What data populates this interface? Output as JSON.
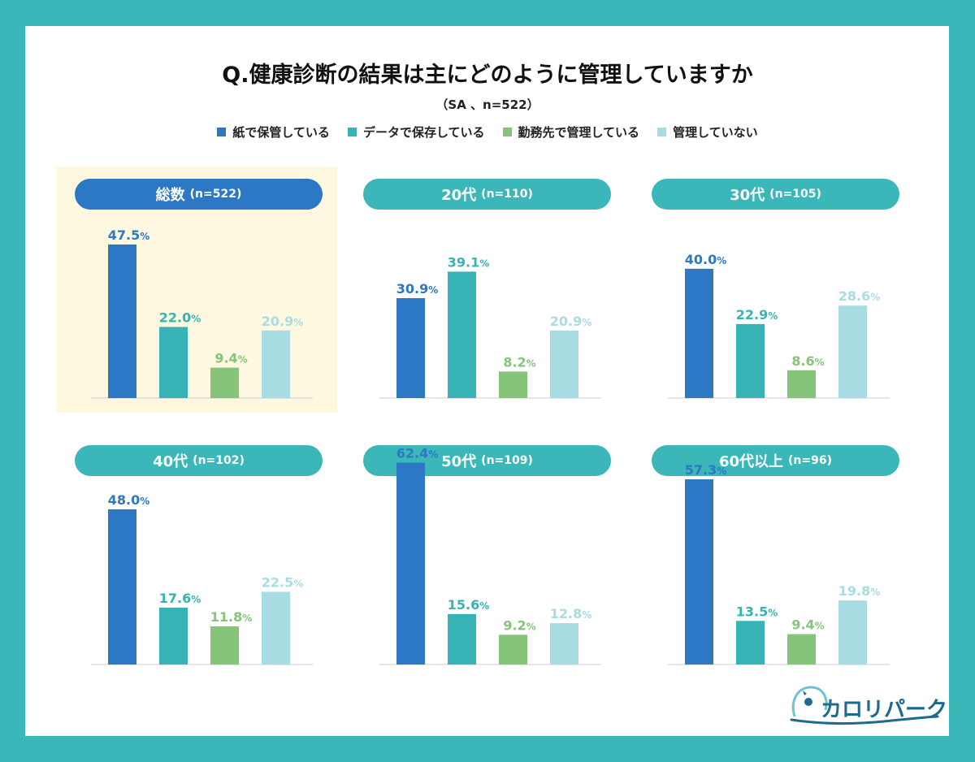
{
  "title": "Q.健康診断の結果は主にどのように管理していますか",
  "subtitle": "（SA 、n=522）",
  "colors": {
    "background": "#3cb7b9",
    "series": [
      "#2c78c4",
      "#37b3b6",
      "#86c47a",
      "#a8dce2"
    ],
    "pill_total": "#2c78c4",
    "pill_age": "#3cb7b9",
    "axis": "#cccccc"
  },
  "chart_data": {
    "type": "bar",
    "series_names": [
      "紙で保管している",
      "データで保存している",
      "勤務先で管理している",
      "管理していない"
    ],
    "value_unit": "%",
    "ylim": [
      0,
      65
    ],
    "grid": false,
    "legend": "top",
    "panels": [
      {
        "label": "総数",
        "n": "(n=522)",
        "values": [
          47.5,
          22.0,
          9.4,
          20.9
        ]
      },
      {
        "label": "20代",
        "n": "(n=110)",
        "values": [
          30.9,
          39.1,
          8.2,
          20.9
        ]
      },
      {
        "label": "30代",
        "n": "(n=105)",
        "values": [
          40.0,
          22.9,
          8.6,
          28.6
        ]
      },
      {
        "label": "40代",
        "n": "(n=102)",
        "values": [
          48.0,
          17.6,
          11.8,
          22.5
        ]
      },
      {
        "label": "50代",
        "n": "(n=109)",
        "values": [
          62.4,
          15.6,
          9.2,
          12.8
        ]
      },
      {
        "label": "60代以上",
        "n": "(n=96)",
        "values": [
          57.3,
          13.5,
          9.4,
          19.8
        ]
      }
    ]
  },
  "logo": {
    "text": "カロリパークス",
    "icon": "mascot-logo-icon"
  }
}
